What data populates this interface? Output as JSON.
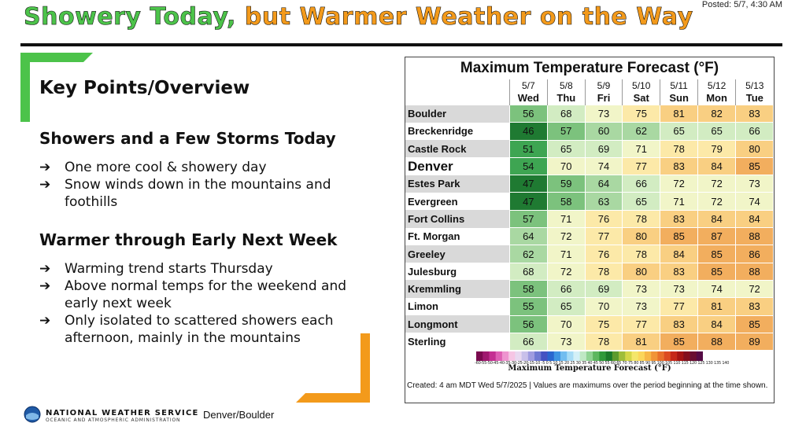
{
  "header": {
    "title_part1": "Showery Today,",
    "title_part2": "but Warmer Weather on the Way",
    "posted": "Posted: 5/7, 4:30 AM"
  },
  "overview": {
    "title": "Key Points/Overview",
    "section1": {
      "heading": "Showers and a Few Storms Today",
      "bullets": [
        "One more cool & showery day",
        "Snow winds down in the mountains and foothills"
      ]
    },
    "section2": {
      "heading": "Warmer through Early Next Week",
      "bullets": [
        "Warming trend starts Thursday",
        "Above normal temps for the weekend and early next week",
        "Only isolated to scattered showers each afternoon, mainly in the mountains"
      ]
    },
    "arrow": "➔"
  },
  "footer": {
    "agency": "NATIONAL WEATHER SERVICE",
    "agency_sub": "OCEANIC AND ATMOSPHERIC ADMINISTRATION",
    "office": "Denver/Boulder"
  },
  "forecast": {
    "title": "Maximum Temperature Forecast (°F)",
    "dates": [
      "5/7",
      "5/8",
      "5/9",
      "5/10",
      "5/11",
      "5/12",
      "5/13"
    ],
    "days": [
      "Wed",
      "Thu",
      "Fri",
      "Sat",
      "Sun",
      "Mon",
      "Tue"
    ],
    "rows": [
      {
        "city": "Boulder",
        "temps": [
          56,
          68,
          73,
          75,
          81,
          82,
          83
        ]
      },
      {
        "city": "Breckenridge",
        "temps": [
          46,
          57,
          60,
          62,
          65,
          65,
          66
        ]
      },
      {
        "city": "Castle Rock",
        "temps": [
          51,
          65,
          69,
          71,
          78,
          79,
          80
        ]
      },
      {
        "city": "Denver",
        "temps": [
          54,
          70,
          74,
          77,
          83,
          84,
          85
        ]
      },
      {
        "city": "Estes Park",
        "temps": [
          47,
          59,
          64,
          66,
          72,
          72,
          73
        ]
      },
      {
        "city": "Evergreen",
        "temps": [
          47,
          58,
          63,
          65,
          71,
          72,
          74
        ]
      },
      {
        "city": "Fort Collins",
        "temps": [
          57,
          71,
          76,
          78,
          83,
          84,
          84
        ]
      },
      {
        "city": "Ft. Morgan",
        "temps": [
          64,
          72,
          77,
          80,
          85,
          87,
          88
        ]
      },
      {
        "city": "Greeley",
        "temps": [
          62,
          71,
          76,
          78,
          84,
          85,
          86
        ]
      },
      {
        "city": "Julesburg",
        "temps": [
          68,
          72,
          78,
          80,
          83,
          85,
          88
        ]
      },
      {
        "city": "Kremmling",
        "temps": [
          58,
          66,
          69,
          73,
          73,
          74,
          72
        ]
      },
      {
        "city": "Limon",
        "temps": [
          55,
          65,
          70,
          73,
          77,
          81,
          83
        ]
      },
      {
        "city": "Longmont",
        "temps": [
          56,
          70,
          75,
          77,
          83,
          84,
          85
        ]
      },
      {
        "city": "Sterling",
        "temps": [
          66,
          73,
          78,
          81,
          85,
          88,
          89
        ]
      }
    ],
    "scale_label": "Maximum Temperature Forecast (°F)",
    "scale_ticks": "-60-55-50-45-40-35-30-25-20-15-10 -5 0  5 10 15 20 25 30 35 40 45 50 55 60 65 70 75 80 85 90 95 100 105 110 115 120 125 130 135 140",
    "note": "Created: 4 am MDT Wed 5/7/2025  |  Values are maximums over the period beginning at the time shown."
  }
}
